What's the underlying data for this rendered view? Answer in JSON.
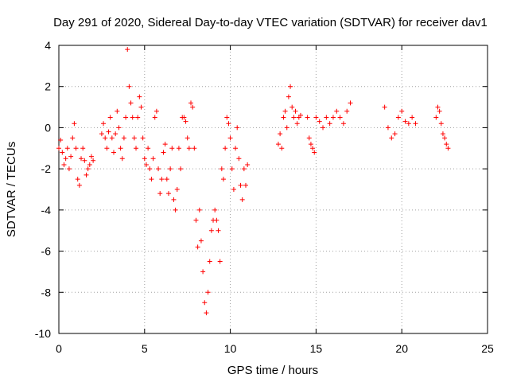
{
  "chart_data": {
    "type": "scatter",
    "title": "Day 291 of 2020, Sidereal Day-to-day VTEC variation (SDTVAR) for receiver dav1",
    "xlabel": "GPS time / hours",
    "ylabel": "SDTVAR / TECUs",
    "xlim": [
      0,
      25
    ],
    "ylim": [
      -10,
      4
    ],
    "xticks": [
      0,
      5,
      10,
      15,
      20,
      25
    ],
    "yticks": [
      -10,
      -8,
      -6,
      -4,
      -2,
      0,
      2,
      4
    ],
    "grid": true,
    "marker": "+",
    "color": "#ff0000",
    "series": [
      {
        "name": "dav1",
        "x": [
          0.0,
          0.1,
          0.2,
          0.3,
          0.4,
          0.5,
          0.6,
          0.7,
          0.8,
          0.9,
          1.0,
          1.1,
          1.2,
          1.3,
          1.4,
          1.5,
          1.6,
          1.7,
          1.8,
          1.9,
          2.0,
          2.5,
          2.6,
          2.7,
          2.8,
          2.9,
          3.0,
          3.1,
          3.2,
          3.3,
          3.4,
          3.5,
          3.6,
          3.7,
          3.8,
          3.9,
          4.0,
          4.1,
          4.2,
          4.3,
          4.4,
          4.5,
          4.6,
          4.7,
          4.8,
          4.9,
          5.0,
          5.1,
          5.2,
          5.3,
          5.4,
          5.5,
          5.6,
          5.7,
          5.8,
          5.9,
          6.0,
          6.1,
          6.2,
          6.3,
          6.4,
          6.5,
          6.6,
          6.7,
          6.8,
          6.9,
          7.0,
          7.1,
          7.2,
          7.3,
          7.4,
          7.5,
          7.6,
          7.7,
          7.8,
          7.9,
          8.0,
          8.1,
          8.2,
          8.3,
          8.4,
          8.5,
          8.6,
          8.7,
          8.8,
          8.9,
          9.0,
          9.1,
          9.2,
          9.3,
          9.4,
          9.5,
          9.6,
          9.7,
          9.8,
          9.9,
          10.0,
          10.1,
          10.2,
          10.3,
          10.4,
          10.5,
          10.6,
          10.7,
          10.8,
          10.9,
          11.0,
          12.8,
          12.9,
          13.0,
          13.1,
          13.2,
          13.3,
          13.4,
          13.5,
          13.6,
          13.7,
          13.8,
          13.9,
          14.0,
          14.1,
          14.5,
          14.6,
          14.7,
          14.8,
          14.9,
          15.0,
          15.2,
          15.4,
          15.6,
          15.8,
          16.0,
          16.2,
          16.4,
          16.6,
          16.8,
          17.0,
          19.0,
          19.2,
          19.4,
          19.6,
          19.8,
          20.0,
          20.2,
          20.4,
          20.6,
          20.8,
          22.0,
          22.1,
          22.2,
          22.3,
          22.4,
          22.5,
          22.6,
          22.7
        ],
        "y": [
          -1.0,
          -0.6,
          -1.2,
          -1.8,
          -1.5,
          -1.0,
          -2.0,
          -1.4,
          -0.5,
          0.2,
          -1.0,
          -2.5,
          -2.8,
          -1.5,
          -1.0,
          -1.6,
          -2.3,
          -2.0,
          -1.8,
          -1.4,
          -1.6,
          -0.3,
          0.2,
          -0.5,
          -1.0,
          -0.2,
          0.5,
          -0.5,
          -1.2,
          -0.3,
          0.8,
          0.0,
          -1.0,
          -1.5,
          -0.5,
          0.5,
          3.8,
          2.0,
          1.2,
          0.5,
          -0.5,
          -1.0,
          0.5,
          1.5,
          1.0,
          -0.5,
          -1.5,
          -1.8,
          -1.0,
          -2.0,
          -2.5,
          -1.5,
          0.5,
          0.8,
          -2.0,
          -3.2,
          -2.5,
          -1.2,
          -0.8,
          -2.5,
          -3.2,
          -2.0,
          -1.0,
          -3.5,
          -4.0,
          -3.0,
          -1.0,
          -2.0,
          0.5,
          0.5,
          0.3,
          -0.5,
          -1.0,
          1.2,
          1.0,
          -1.0,
          -4.5,
          -5.8,
          -4.0,
          -5.5,
          -7.0,
          -8.5,
          -9.0,
          -8.0,
          -6.5,
          -5.0,
          -4.5,
          -4.0,
          -4.5,
          -5.0,
          -6.5,
          -2.0,
          -2.5,
          -1.0,
          0.5,
          0.2,
          -0.5,
          -2.0,
          -3.0,
          -1.0,
          0.0,
          -1.5,
          -2.8,
          -3.5,
          -2.0,
          -2.8,
          -1.8,
          -0.8,
          -0.3,
          -1.0,
          0.5,
          0.8,
          0.0,
          1.5,
          2.0,
          1.0,
          0.5,
          0.8,
          0.2,
          0.5,
          0.6,
          0.5,
          -0.5,
          -0.8,
          -1.0,
          -1.2,
          0.5,
          0.3,
          0.0,
          0.5,
          0.2,
          0.5,
          0.8,
          0.5,
          0.2,
          0.8,
          1.2,
          1.0,
          0.0,
          -0.5,
          -0.3,
          0.5,
          0.8,
          0.3,
          0.2,
          0.5,
          0.2,
          0.5,
          1.0,
          0.8,
          0.2,
          -0.3,
          -0.5,
          -0.8,
          -1.0
        ]
      }
    ]
  }
}
